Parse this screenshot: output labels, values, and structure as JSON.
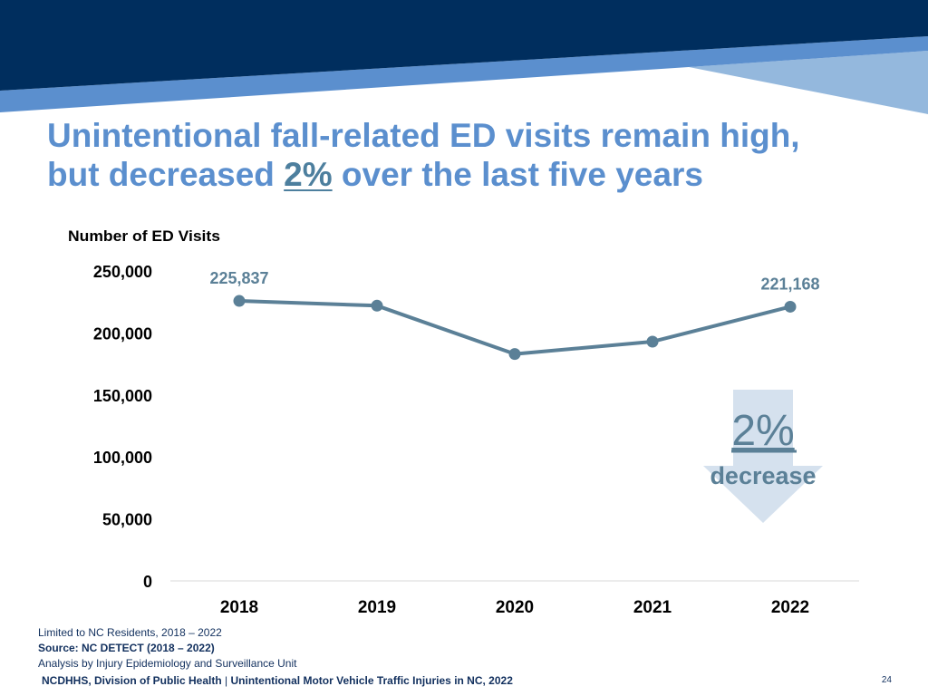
{
  "colors": {
    "navy": "#002e5e",
    "band": "#5b8fce",
    "light_band": "#94b8dd",
    "line": "#5b8097",
    "arrow": "#d5e1ee"
  },
  "slide": {
    "title_part1": "Unintentional fall-related ED visits remain high,",
    "title_part2": "but decreased",
    "title_pct": "2%",
    "title_part3": "over the last five years"
  },
  "callout": {
    "pct": "2%",
    "label": "decrease",
    "icon": "down-arrow-icon"
  },
  "chart_data": {
    "type": "line",
    "title": "",
    "ylabel": "Number of ED Visits",
    "xlabel": "",
    "ylim": [
      0,
      250000
    ],
    "yticks": [
      0,
      50000,
      100000,
      150000,
      200000,
      250000
    ],
    "ytick_labels": [
      "0",
      "50,000",
      "100,000",
      "150,000",
      "200,000",
      "250,000"
    ],
    "categories": [
      "2018",
      "2019",
      "2020",
      "2021",
      "2022"
    ],
    "series": [
      {
        "name": "ED Visits",
        "values": [
          225837,
          222000,
          183000,
          193000,
          221168
        ]
      }
    ],
    "data_labels": [
      {
        "index": 0,
        "text": "225,837"
      },
      {
        "index": 4,
        "text": "221,168"
      }
    ]
  },
  "notes": {
    "line1": "Limited to NC Residents, 2018 – 2022",
    "line2": "Source: NC DETECT (2018 – 2022)",
    "line3": "Analysis by Injury Epidemiology and Surveillance Unit"
  },
  "footer": {
    "org": "NCDHHS, Division of Public Health",
    "separator": " | ",
    "report": "Unintentional Motor Vehicle Traffic Injuries in NC, 2022",
    "page": "24"
  }
}
